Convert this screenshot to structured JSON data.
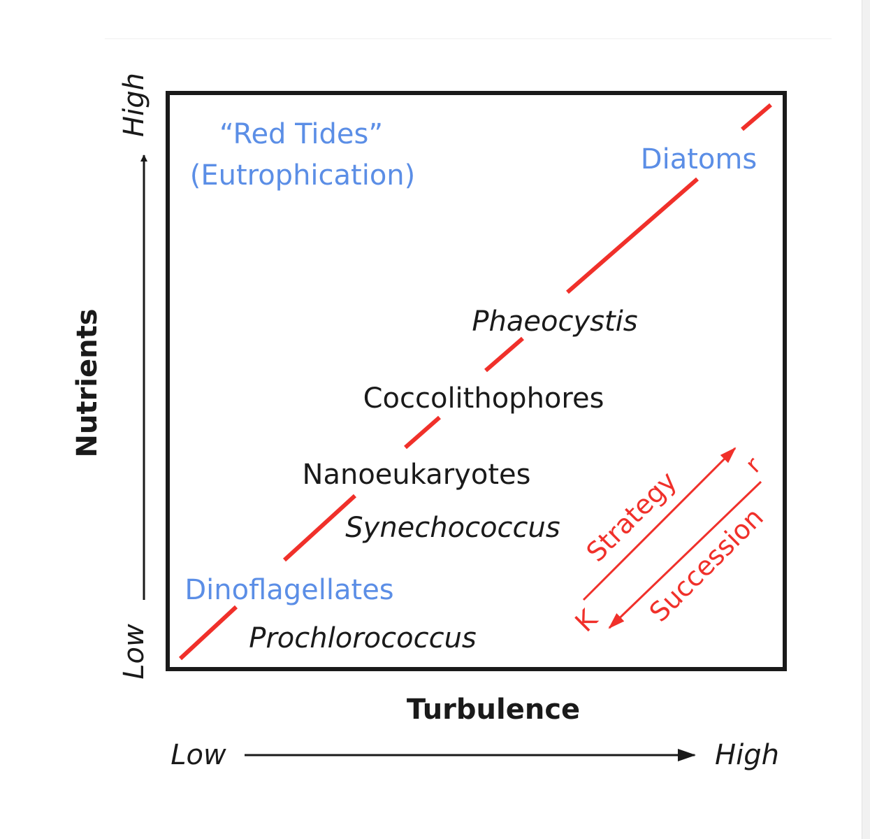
{
  "axes": {
    "x_title": "Turbulence",
    "y_title": "Nutrients",
    "x_low": "Low",
    "x_high": "High",
    "y_low": "Low",
    "y_high": "High"
  },
  "groups": {
    "red_tides_line1": "“Red Tides”",
    "red_tides_line2": "(Eutrophication)",
    "diatoms": "Diatoms",
    "dinoflagellates": "Dinoflagellates",
    "phaeocystis": "Phaeocystis",
    "coccolithophores": "Coccolithophores",
    "nanoeukaryotes": "Nanoeukaryotes",
    "synechococcus": "Synechococcus",
    "prochlorococcus": "Prochlorococcus"
  },
  "strategy_inset": {
    "strategy": "Strategy",
    "succession": "Succession",
    "r": "r",
    "k": "K"
  },
  "colors": {
    "black": "#1a1a1a",
    "blue": "#5b8ee6",
    "red": "#f0302a"
  }
}
